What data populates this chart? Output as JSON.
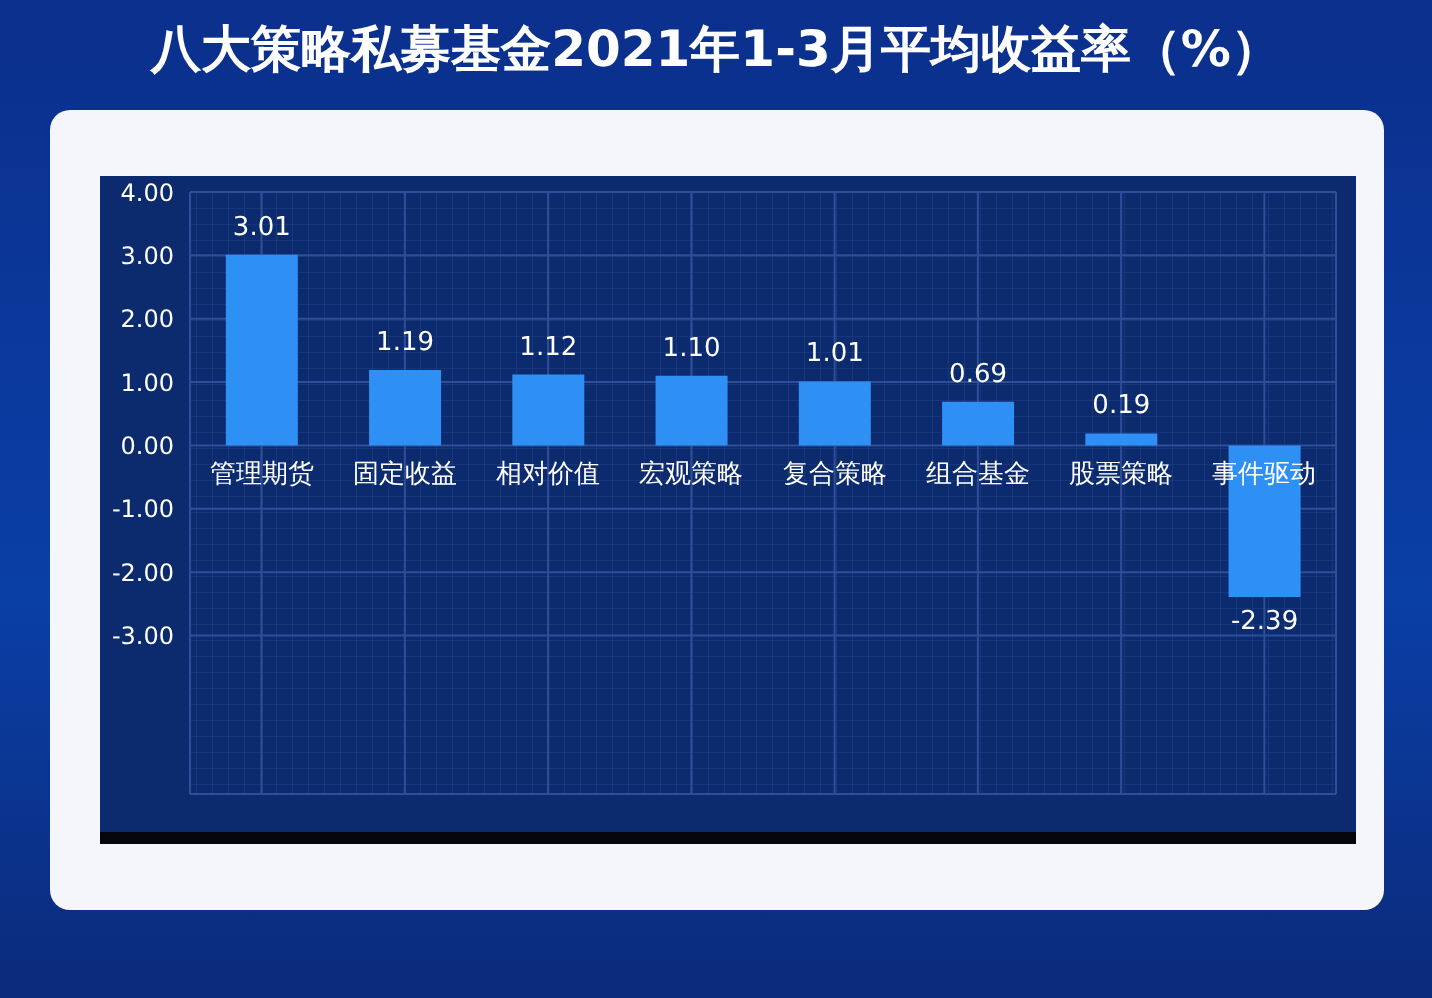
{
  "chart_data": {
    "type": "bar",
    "title": "八大策略私募基金2021年1-3月平均收益率（%）",
    "categories": [
      "管理期货",
      "固定收益",
      "相对价值",
      "宏观策略",
      "复合策略",
      "组合基金",
      "股票策略",
      "事件驱动"
    ],
    "values": [
      3.01,
      1.19,
      1.12,
      1.1,
      1.01,
      0.69,
      0.19,
      -2.39
    ],
    "value_labels": [
      "3.01",
      "1.19",
      "1.12",
      "1.10",
      "1.01",
      "0.69",
      "0.19",
      "-2.39"
    ],
    "color": "#2e8ff5",
    "ylim": [
      -5.5,
      4
    ],
    "yticks": [
      {
        "value": -3,
        "label": "-3.00"
      },
      {
        "value": -2,
        "label": "-2.00"
      },
      {
        "value": -1,
        "label": "-1.00"
      },
      {
        "value": 0,
        "label": "0.00"
      },
      {
        "value": 1,
        "label": "1.00"
      },
      {
        "value": 2,
        "label": "2.00"
      },
      {
        "value": 3,
        "label": "3.00"
      },
      {
        "value": 4,
        "label": "4.00"
      }
    ],
    "grid": true
  }
}
